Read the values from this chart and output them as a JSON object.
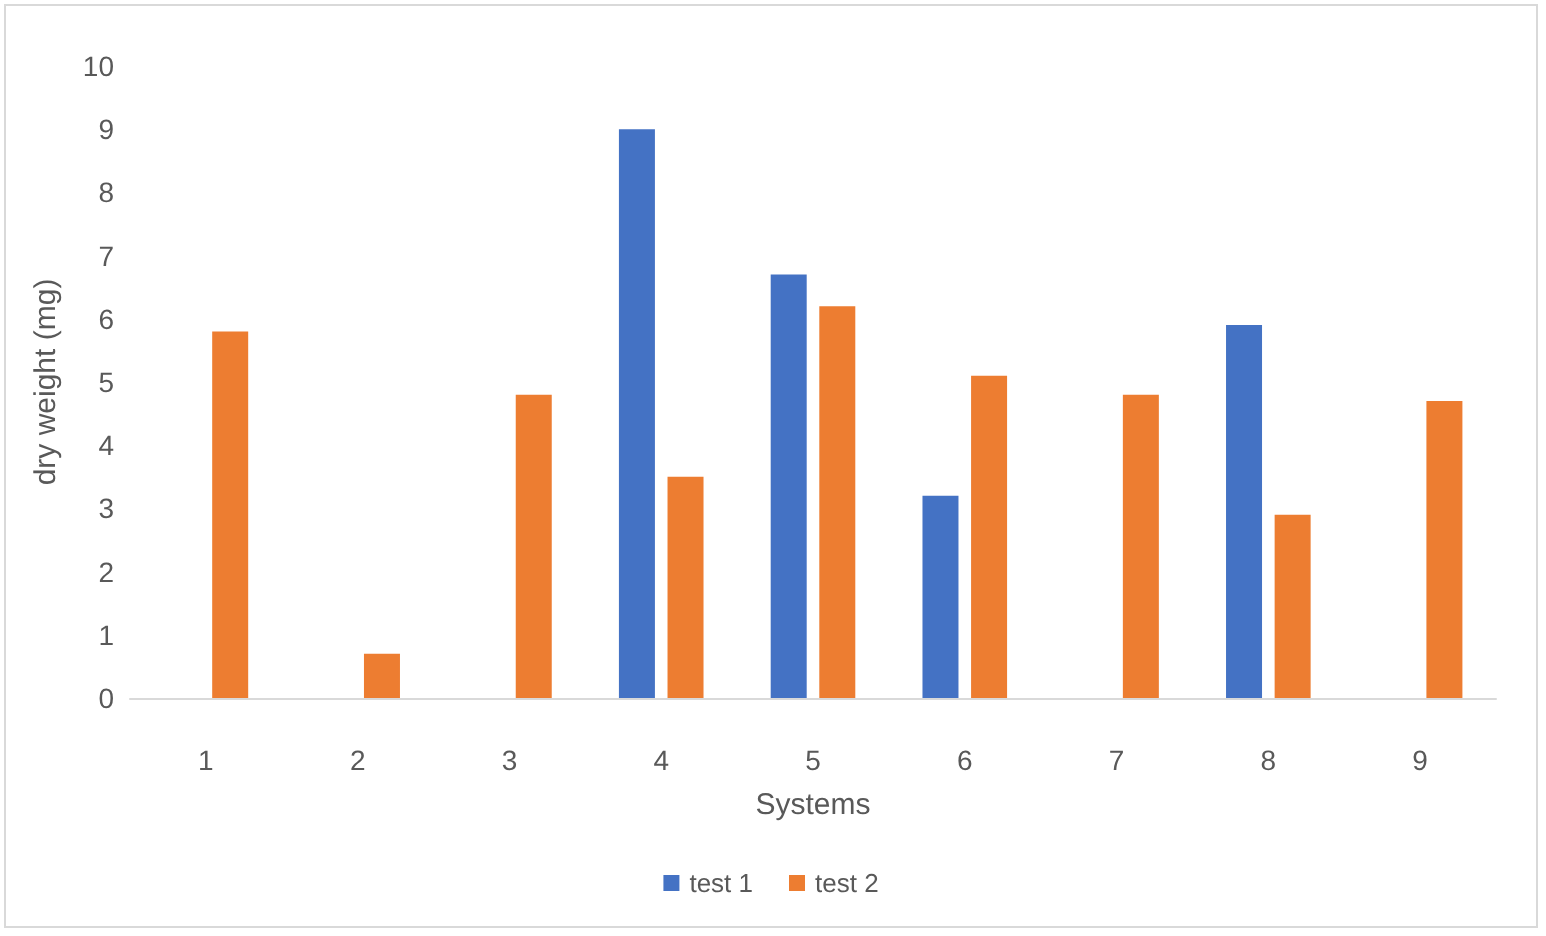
{
  "chart_data": {
    "type": "bar",
    "xlabel": "Systems",
    "ylabel": "dry weight (mg)",
    "categories": [
      "1",
      "2",
      "3",
      "4",
      "5",
      "6",
      "7",
      "8",
      "9"
    ],
    "series": [
      {
        "name": "test 1",
        "color": "#4472c4",
        "values": [
          null,
          null,
          null,
          9.0,
          6.7,
          3.2,
          null,
          5.9,
          null
        ]
      },
      {
        "name": "test 2",
        "color": "#ed7d31",
        "values": [
          5.8,
          0.7,
          4.8,
          3.5,
          6.2,
          5.1,
          4.8,
          2.9,
          4.7
        ]
      }
    ],
    "ylim": [
      0,
      10
    ],
    "yticks": [
      0,
      1,
      2,
      3,
      4,
      5,
      6,
      7,
      8,
      9,
      10
    ],
    "grid": false,
    "legend": "bottom"
  }
}
